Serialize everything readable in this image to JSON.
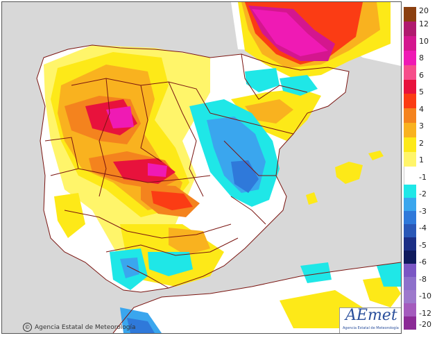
{
  "map": {
    "credit": "Agencia Estatal de Meteorología",
    "credit_symbol": "©",
    "logo_word": "AEmet",
    "logo_subtitle": "Agencia Estatal de Meteorología"
  },
  "legend": {
    "labels": [
      "20",
      "12",
      "10",
      "8",
      "6",
      "5",
      "4",
      "3",
      "2",
      "1",
      "-1",
      "-2",
      "-3",
      "-4",
      "-5",
      "-6",
      "-8",
      "-10",
      "-12",
      "-20"
    ],
    "colors": [
      "#8b4010",
      "#b01a6e",
      "#d4168e",
      "#ef1ab4",
      "#f64e8b",
      "#e8123c",
      "#fb3c14",
      "#f4831e",
      "#f9b21f",
      "#fde918",
      "#fff56a",
      "#ffffff",
      "#1fe7e7",
      "#3aa6ee",
      "#2f79da",
      "#2a58b7",
      "#1c2f86",
      "#0f1a5d",
      "#7a56c4",
      "#8d70cb",
      "#9d79cc",
      "#a45bbd",
      "#8b2a96"
    ]
  },
  "palette": {
    "sea": "#d8d8d8",
    "land": "#ffffff",
    "border": "#7a1410"
  }
}
